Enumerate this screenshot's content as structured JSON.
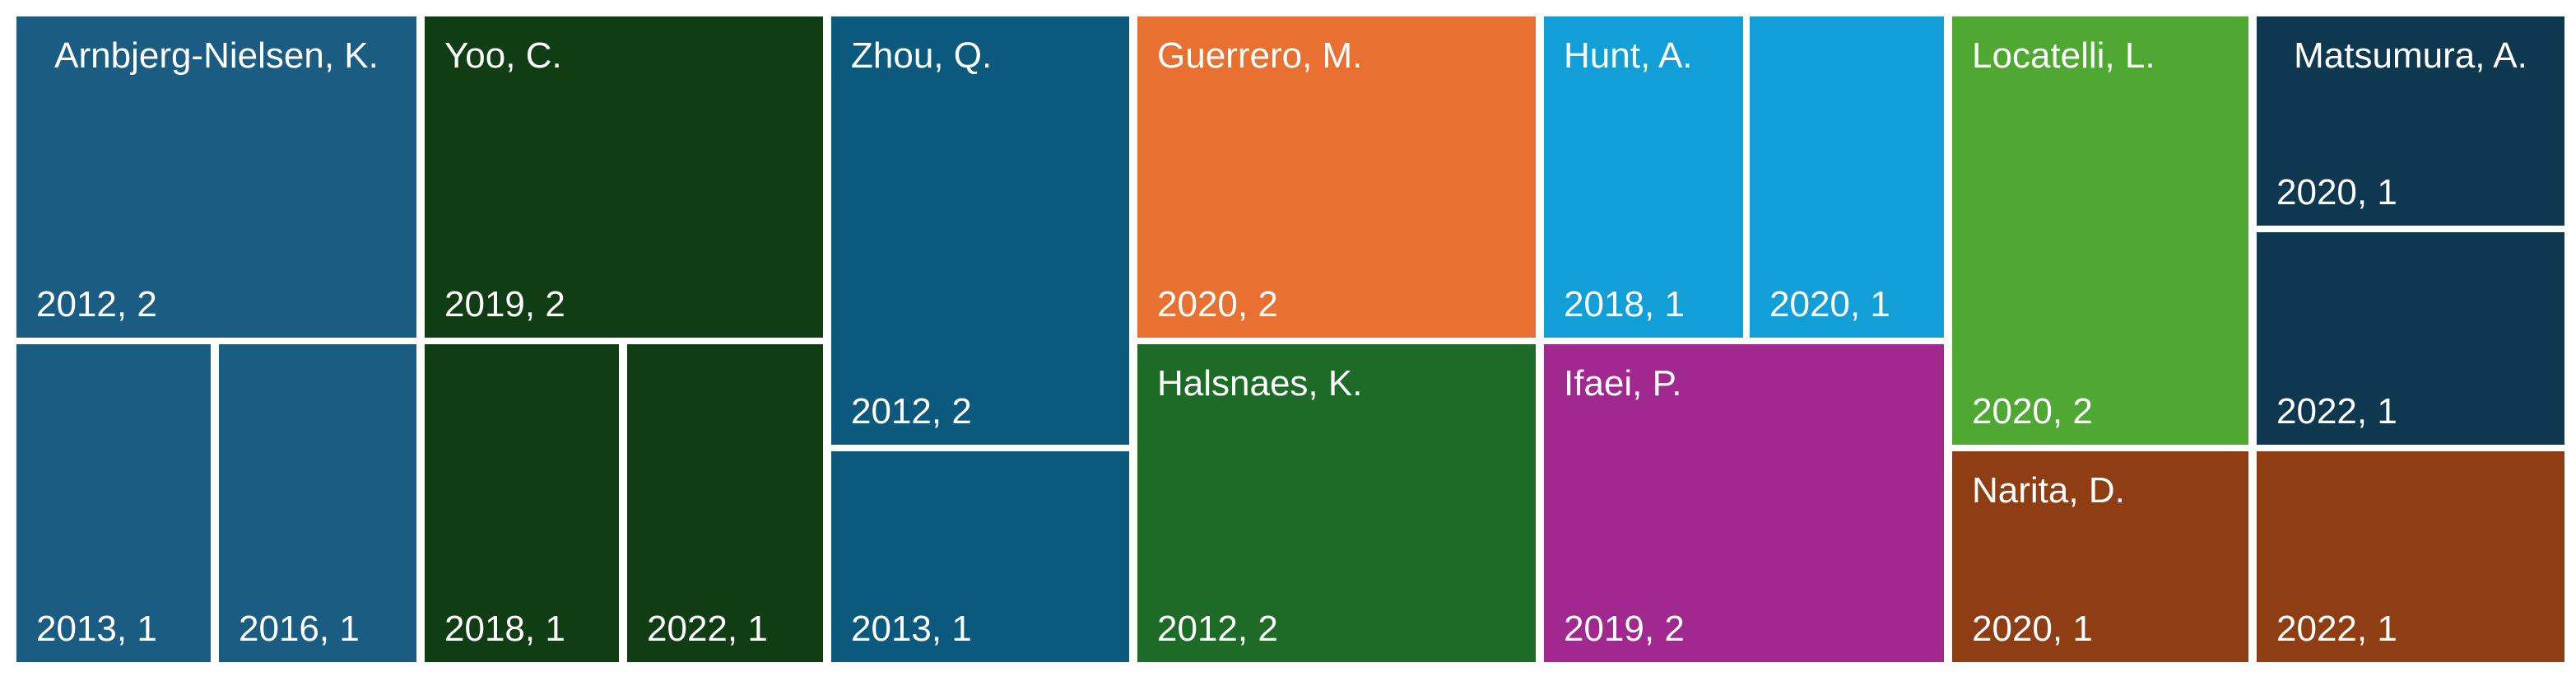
{
  "chart_data": {
    "type": "treemap",
    "groups": [
      {
        "name": "Arnbjerg-Nielsen, K.",
        "color": "#1b5c82",
        "cells": [
          {
            "label": "2012, 2",
            "value": 2
          },
          {
            "label": "2013, 1",
            "value": 1
          },
          {
            "label": "2016, 1",
            "value": 1
          }
        ]
      },
      {
        "name": "Yoo, C.",
        "color": "#113d14",
        "cells": [
          {
            "label": "2019, 2",
            "value": 2
          },
          {
            "label": "2018, 1",
            "value": 1
          },
          {
            "label": "2022, 1",
            "value": 1
          }
        ]
      },
      {
        "name": "Zhou, Q.",
        "color": "#0b5a7e",
        "cells": [
          {
            "label": "2012, 2",
            "value": 2
          },
          {
            "label": "2013, 1",
            "value": 1
          }
        ]
      },
      {
        "name": "Guerrero, M.",
        "color": "#e87030",
        "cells": [
          {
            "label": "2020, 2",
            "value": 2
          }
        ]
      },
      {
        "name": "Halsnaes, K.",
        "color": "#1e6b28",
        "cells": [
          {
            "label": "2012, 2",
            "value": 2
          }
        ]
      },
      {
        "name": "Hunt, A.",
        "color": "#129fd8",
        "cells": [
          {
            "label": "2018, 1",
            "value": 1
          },
          {
            "label": "2020, 1",
            "value": 1
          }
        ]
      },
      {
        "name": "Ifaei, P.",
        "color": "#a0288e",
        "cells": [
          {
            "label": "2019, 2",
            "value": 2
          }
        ]
      },
      {
        "name": "Locatelli, L.",
        "color": "#4ea832",
        "cells": [
          {
            "label": "2020, 2",
            "value": 2
          }
        ]
      },
      {
        "name": "Narita, D.",
        "color": "#8f3d12",
        "cells": [
          {
            "label": "2020, 1",
            "value": 1
          },
          {
            "label": "2022, 1",
            "value": 1
          }
        ]
      },
      {
        "name": "Matsumura, A.",
        "color": "#0e3850",
        "cells": [
          {
            "label": "2020, 1",
            "value": 1
          },
          {
            "label": "2022, 1",
            "value": 1
          }
        ]
      }
    ]
  }
}
